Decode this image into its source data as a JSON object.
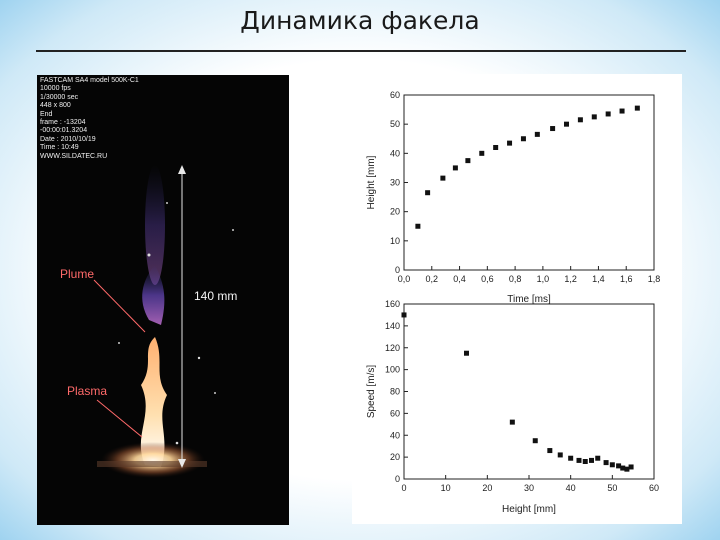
{
  "slide": {
    "title": "Динамика факела"
  },
  "photo": {
    "info_lines": [
      "FASTCAM SA4 model 500K-C1",
      "10000 fps",
      "1/30000 sec",
      "448 x 800",
      "End",
      "frame : -13204",
      "-00:00:01.3204",
      "Date : 2010/10/19",
      "Time : 10:49",
      "WWW.SILDATEC.RU"
    ],
    "label_plume": "Plume",
    "label_plasma": "Plasma",
    "label_distance": "140 mm",
    "colors": {
      "label": "#ff6a6a",
      "background": "#050505"
    }
  },
  "chart_data": [
    {
      "type": "scatter",
      "title": "",
      "xlabel": "Time [ms]",
      "ylabel": "Height [mm]",
      "xlim": [
        0.0,
        1.8
      ],
      "ylim": [
        0,
        60
      ],
      "xticks": [
        "0,0",
        "0,2",
        "0,4",
        "0,6",
        "0,8",
        "1,0",
        "1,2",
        "1,4",
        "1,6",
        "1,8"
      ],
      "yticks": [
        "0",
        "10",
        "20",
        "30",
        "40",
        "50",
        "60"
      ],
      "grid": false,
      "points": [
        [
          0.1,
          15
        ],
        [
          0.17,
          26.5
        ],
        [
          0.28,
          31.5
        ],
        [
          0.37,
          35
        ],
        [
          0.46,
          37.5
        ],
        [
          0.56,
          40
        ],
        [
          0.66,
          42
        ],
        [
          0.76,
          43.5
        ],
        [
          0.86,
          45
        ],
        [
          0.96,
          46.5
        ],
        [
          1.07,
          48.5
        ],
        [
          1.17,
          50
        ],
        [
          1.27,
          51.5
        ],
        [
          1.37,
          52.5
        ],
        [
          1.47,
          53.5
        ],
        [
          1.57,
          54.5
        ],
        [
          1.68,
          55.5
        ]
      ]
    },
    {
      "type": "scatter",
      "title": "",
      "xlabel": "Height [mm]",
      "ylabel": "Speed [m/s]",
      "xlim": [
        0,
        60
      ],
      "ylim": [
        0,
        160
      ],
      "xticks": [
        "0",
        "10",
        "20",
        "30",
        "40",
        "50",
        "60"
      ],
      "yticks": [
        "0",
        "20",
        "40",
        "60",
        "80",
        "100",
        "120",
        "140",
        "160"
      ],
      "grid": false,
      "points": [
        [
          0,
          150
        ],
        [
          15,
          115
        ],
        [
          26,
          52
        ],
        [
          31.5,
          35
        ],
        [
          35,
          26
        ],
        [
          37.5,
          22
        ],
        [
          40,
          19
        ],
        [
          42,
          17
        ],
        [
          43.5,
          16
        ],
        [
          45,
          17
        ],
        [
          46.5,
          19
        ],
        [
          48.5,
          15
        ],
        [
          50,
          13
        ],
        [
          51.5,
          12
        ],
        [
          52.5,
          10
        ],
        [
          53.5,
          9
        ],
        [
          54.5,
          11
        ]
      ]
    }
  ]
}
